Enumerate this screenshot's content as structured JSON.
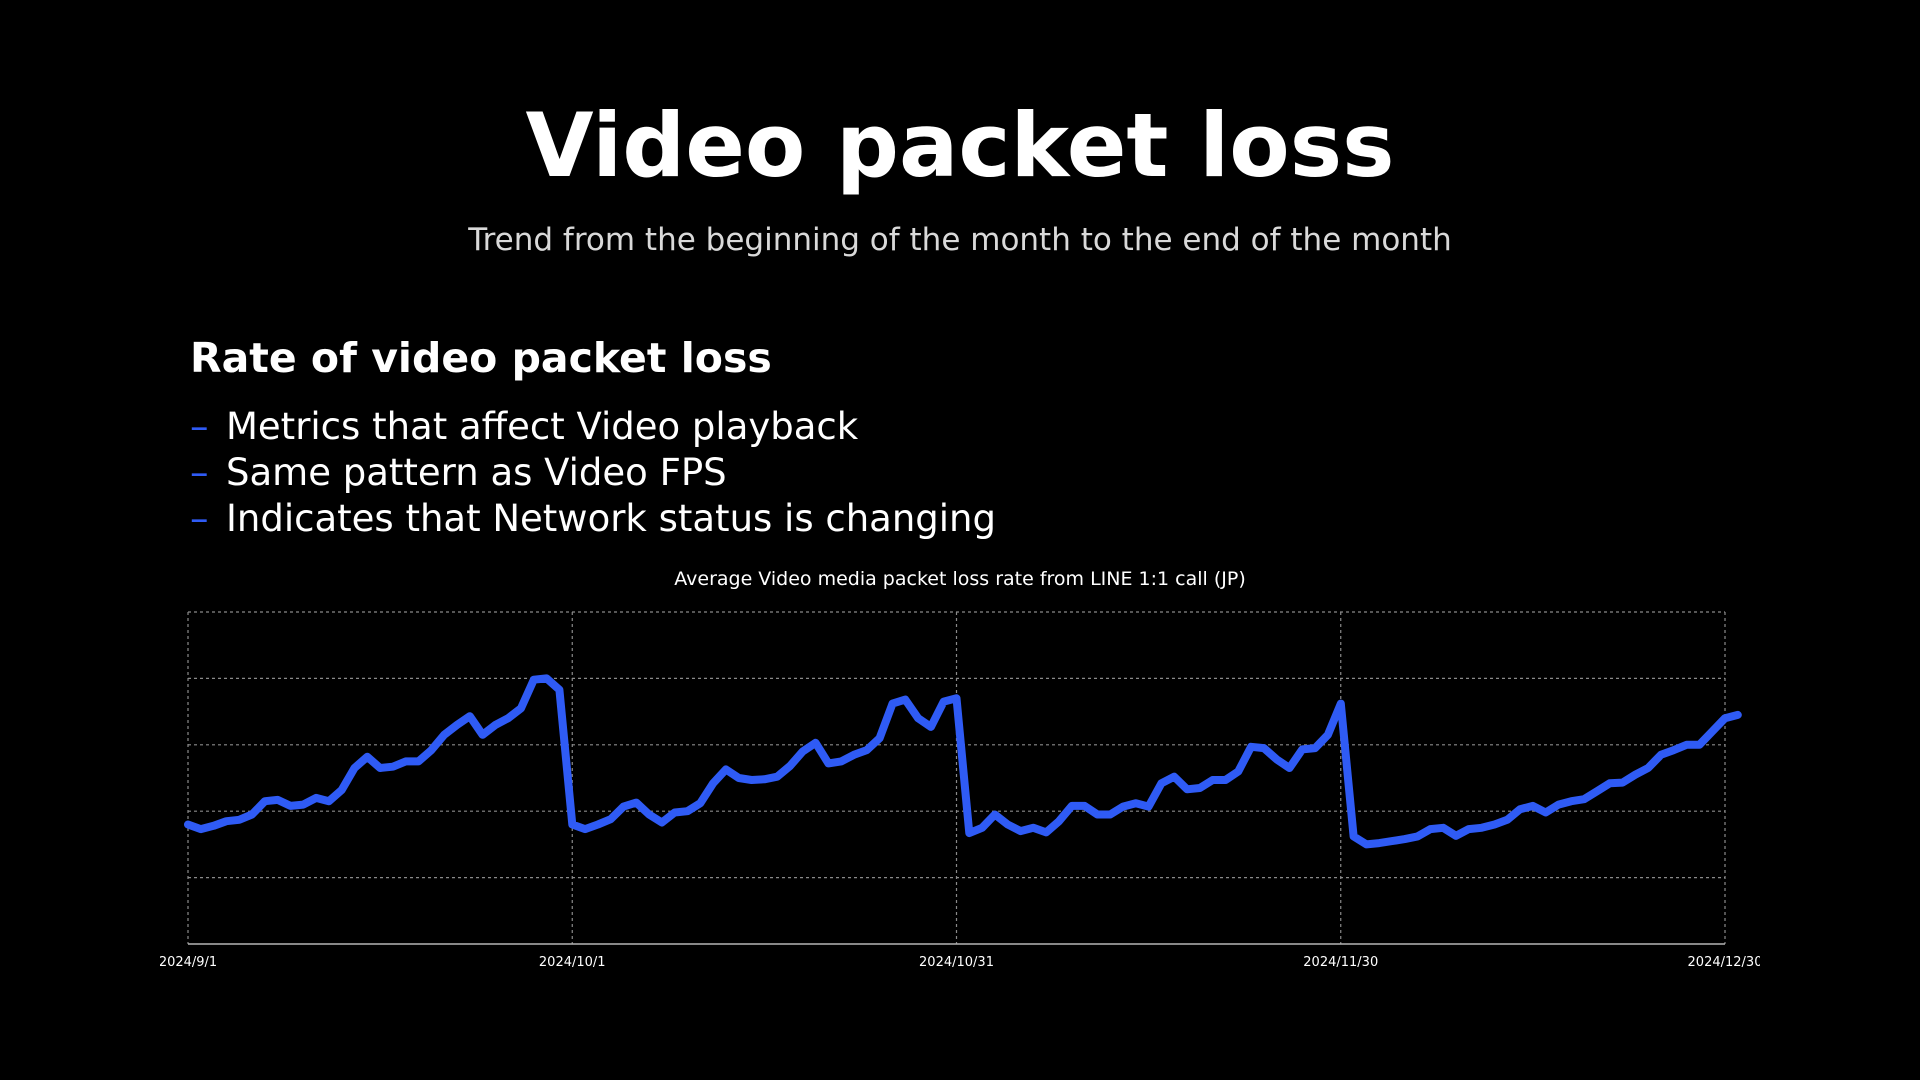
{
  "title": "Video packet loss",
  "subtitle": "Trend from the beginning of the month to the end of the month",
  "section_heading": "Rate of video packet loss",
  "bullets": [
    "Metrics that affect Video playback",
    "Same pattern as Video FPS",
    "Indicates that Network status is changing"
  ],
  "colors": {
    "background": "#000000",
    "text": "#ffffff",
    "accent": "#2f5bf5",
    "line": "#2f5bf5",
    "grid": "#8a8a8a"
  },
  "chart_data": {
    "type": "line",
    "title": "Average Video media packet loss rate from LINE 1:1 call (JP)",
    "xlabel": "",
    "ylabel": "",
    "x_ticks": [
      "2024/9/1",
      "2024/10/1",
      "2024/10/31",
      "2024/11/30",
      "2024/12/30"
    ],
    "x_tick_day_index": [
      0,
      30,
      60,
      90,
      120
    ],
    "y_tick_labels_shown": false,
    "y_gridlines": 5,
    "ylim": [
      0,
      5
    ],
    "grid": true,
    "series": [
      {
        "values": [
          1.8,
          1.73,
          1.78,
          1.85,
          1.87,
          1.95,
          2.15,
          2.17,
          2.08,
          2.1,
          2.2,
          2.15,
          2.32,
          2.65,
          2.82,
          2.65,
          2.67,
          2.75,
          2.75,
          2.92,
          3.15,
          3.3,
          3.43,
          3.15,
          3.3,
          3.4,
          3.55,
          3.98,
          4.0,
          3.83,
          1.8,
          1.73,
          1.8,
          1.88,
          2.07,
          2.13,
          1.95,
          1.83,
          1.98,
          2.0,
          2.12,
          2.42,
          2.63,
          2.5,
          2.47,
          2.48,
          2.52,
          2.68,
          2.9,
          3.03,
          2.72,
          2.75,
          2.85,
          2.92,
          3.1,
          3.62,
          3.68,
          3.4,
          3.27,
          3.65,
          3.7,
          1.67,
          1.75,
          1.95,
          1.8,
          1.7,
          1.75,
          1.68,
          1.85,
          2.08,
          2.08,
          1.95,
          1.95,
          2.07,
          2.12,
          2.07,
          2.42,
          2.52,
          2.33,
          2.35,
          2.47,
          2.47,
          2.6,
          2.97,
          2.95,
          2.78,
          2.65,
          2.93,
          2.95,
          3.15,
          3.62,
          1.62,
          1.5,
          1.52,
          1.55,
          1.58,
          1.62,
          1.73,
          1.75,
          1.63,
          1.73,
          1.75,
          1.8,
          1.87,
          2.03,
          2.08,
          1.98,
          2.1,
          2.15,
          2.18,
          2.3,
          2.42,
          2.43,
          2.55,
          2.65,
          2.85,
          2.92,
          3.0,
          3.0,
          3.2,
          3.4,
          3.45
        ]
      }
    ]
  }
}
